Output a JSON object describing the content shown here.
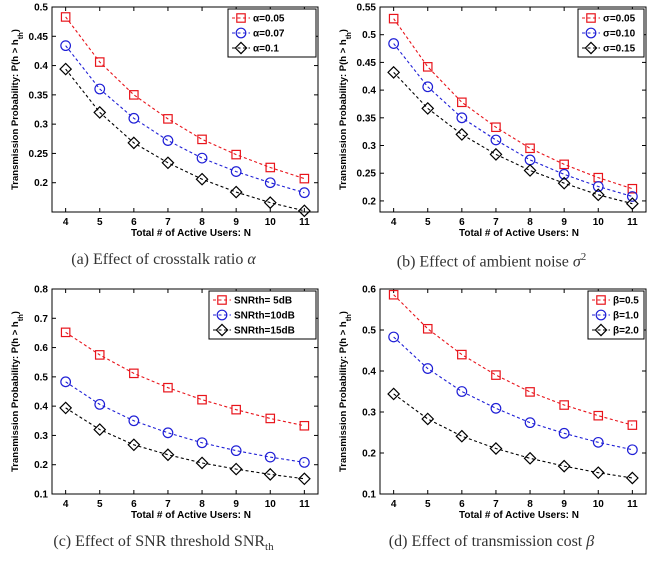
{
  "ylabel": "Transmission Probability:  P(h > h",
  "ylabel_sub": "th",
  "ylabel_end": ")",
  "xlabel": "Total # of Active Users:  N",
  "colors": {
    "red": "#e8141b",
    "blue": "#1f1fd6",
    "black": "#000000"
  },
  "chart_data": [
    {
      "type": "line",
      "caption_prefix": "(a) Effect of crosstalk ratio ",
      "caption_symbol": "α",
      "x": [
        4,
        5,
        6,
        7,
        8,
        9,
        10,
        11
      ],
      "xlim": [
        3.6,
        11.4
      ],
      "ylim": [
        0.15,
        0.5
      ],
      "yticks": [
        "0.2",
        "0.25",
        "0.3",
        "0.35",
        "0.4",
        "0.45",
        "0.5"
      ],
      "ytick_values": [
        0.2,
        0.25,
        0.3,
        0.35,
        0.4,
        0.45,
        0.5
      ],
      "legend_placement": "top-right",
      "grid": false,
      "series": [
        {
          "name": "α=0.05",
          "color": "red",
          "marker": "square",
          "values": [
            0.483,
            0.406,
            0.35,
            0.309,
            0.274,
            0.248,
            0.226,
            0.207
          ]
        },
        {
          "name": "α=0.07",
          "color": "blue",
          "marker": "circle",
          "values": [
            0.434,
            0.36,
            0.31,
            0.272,
            0.242,
            0.219,
            0.2,
            0.183
          ]
        },
        {
          "name": "α=0.1",
          "color": "black",
          "marker": "diamond",
          "values": [
            0.394,
            0.32,
            0.268,
            0.234,
            0.206,
            0.184,
            0.166,
            0.152
          ]
        }
      ]
    },
    {
      "type": "line",
      "caption_prefix": "(b) Effect of ambient noise ",
      "caption_symbol": "σ",
      "caption_sup": "2",
      "x": [
        4,
        5,
        6,
        7,
        8,
        9,
        10,
        11
      ],
      "xlim": [
        3.6,
        11.4
      ],
      "ylim": [
        0.18,
        0.55
      ],
      "yticks": [
        "0.2",
        "0.25",
        "0.3",
        "0.35",
        "0.4",
        "0.45",
        "0.5",
        "0.55"
      ],
      "ytick_values": [
        0.2,
        0.25,
        0.3,
        0.35,
        0.4,
        0.45,
        0.5,
        0.55
      ],
      "legend_placement": "top-right",
      "grid": false,
      "series": [
        {
          "name": "σ=0.05",
          "color": "red",
          "marker": "square",
          "values": [
            0.529,
            0.442,
            0.378,
            0.333,
            0.295,
            0.266,
            0.242,
            0.222
          ]
        },
        {
          "name": "σ=0.10",
          "color": "blue",
          "marker": "circle",
          "values": [
            0.484,
            0.406,
            0.35,
            0.31,
            0.274,
            0.248,
            0.226,
            0.208
          ]
        },
        {
          "name": "σ=0.15",
          "color": "black",
          "marker": "diamond",
          "values": [
            0.432,
            0.367,
            0.32,
            0.284,
            0.255,
            0.232,
            0.211,
            0.195
          ]
        }
      ]
    },
    {
      "type": "line",
      "caption_prefix": "(c) Effect of SNR threshold SNR",
      "caption_sub": "th",
      "x": [
        4,
        5,
        6,
        7,
        8,
        9,
        10,
        11
      ],
      "xlim": [
        3.6,
        11.4
      ],
      "ylim": [
        0.1,
        0.8
      ],
      "yticks": [
        "0.1",
        "0.2",
        "0.3",
        "0.4",
        "0.5",
        "0.6",
        "0.7",
        "0.8"
      ],
      "ytick_values": [
        0.1,
        0.2,
        0.3,
        0.4,
        0.5,
        0.6,
        0.7,
        0.8
      ],
      "legend_placement": "top-right",
      "grid": false,
      "series": [
        {
          "name": "SNRth=  5dB",
          "color": "red",
          "marker": "square",
          "values": [
            0.652,
            0.575,
            0.512,
            0.463,
            0.422,
            0.388,
            0.358,
            0.333
          ]
        },
        {
          "name": "SNRth=10dB",
          "color": "blue",
          "marker": "circle",
          "values": [
            0.483,
            0.406,
            0.35,
            0.309,
            0.275,
            0.248,
            0.226,
            0.208
          ]
        },
        {
          "name": "SNRth=15dB",
          "color": "black",
          "marker": "diamond",
          "values": [
            0.394,
            0.32,
            0.268,
            0.234,
            0.206,
            0.185,
            0.167,
            0.152
          ]
        }
      ]
    },
    {
      "type": "line",
      "caption_prefix": "(d) Effect of transmission cost ",
      "caption_symbol": "β",
      "x": [
        4,
        5,
        6,
        7,
        8,
        9,
        10,
        11
      ],
      "xlim": [
        3.6,
        11.4
      ],
      "ylim": [
        0.1,
        0.6
      ],
      "yticks": [
        "0.1",
        "0.2",
        "0.3",
        "0.4",
        "0.5",
        "0.6"
      ],
      "ytick_values": [
        0.1,
        0.2,
        0.3,
        0.4,
        0.5,
        0.6
      ],
      "legend_placement": "top-right",
      "grid": false,
      "series": [
        {
          "name": "β=0.5",
          "color": "red",
          "marker": "square",
          "values": [
            0.586,
            0.503,
            0.44,
            0.39,
            0.349,
            0.317,
            0.291,
            0.268
          ]
        },
        {
          "name": "β=1.0",
          "color": "blue",
          "marker": "circle",
          "values": [
            0.483,
            0.406,
            0.35,
            0.309,
            0.274,
            0.248,
            0.226,
            0.208
          ]
        },
        {
          "name": "β=2.0",
          "color": "black",
          "marker": "diamond",
          "values": [
            0.344,
            0.283,
            0.241,
            0.211,
            0.187,
            0.168,
            0.152,
            0.139
          ]
        }
      ]
    }
  ]
}
